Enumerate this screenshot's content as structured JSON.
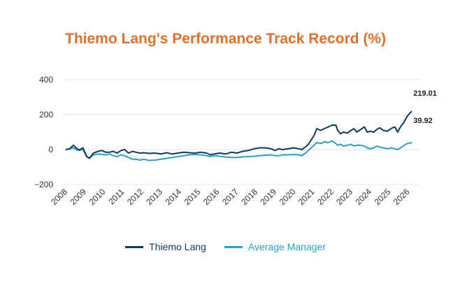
{
  "chart_data": {
    "type": "line",
    "title": "Thiemo Lang's Performance Track Record (%)",
    "xlabel": "",
    "ylabel": "",
    "ylim": [
      -200,
      400
    ],
    "xlim": [
      2007.75,
      2026.5
    ],
    "yticks": [
      400,
      200,
      0,
      -200
    ],
    "yticklabels": [
      "400",
      "200",
      "0",
      "−200"
    ],
    "xticks": [
      2008,
      2009,
      2010,
      2011,
      2012,
      2013,
      2014,
      2015,
      2016,
      2017,
      2018,
      2019,
      2020,
      2021,
      2022,
      2023,
      2024,
      2025,
      2026
    ],
    "xticklabels": [
      "2008",
      "2009",
      "2010",
      "2011",
      "2012",
      "2013",
      "2014",
      "2015",
      "2016",
      "2017",
      "2018",
      "2019",
      "2020",
      "2021",
      "2022",
      "2023",
      "2024",
      "2025",
      "2026"
    ],
    "grid": true,
    "legend_position": "bottom",
    "colors": {
      "title": "#e0702a",
      "series_1": "#0d3a5f",
      "series_2": "#2aa0c8"
    },
    "series": [
      {
        "name": "Thiemo Lang",
        "end_label": "219.01",
        "x": [
          2007.9,
          2008.1,
          2008.3,
          2008.45,
          2008.6,
          2008.8,
          2009.0,
          2009.15,
          2009.35,
          2009.6,
          2009.8,
          2010.0,
          2010.2,
          2010.4,
          2010.6,
          2010.8,
          2011.0,
          2011.2,
          2011.4,
          2011.6,
          2011.8,
          2012.0,
          2012.3,
          2012.6,
          2012.9,
          2013.2,
          2013.5,
          2013.8,
          2014.1,
          2014.4,
          2014.7,
          2015.0,
          2015.3,
          2015.5,
          2015.7,
          2016.0,
          2016.3,
          2016.6,
          2016.9,
          2017.2,
          2017.5,
          2017.8,
          2018.1,
          2018.4,
          2018.7,
          2018.9,
          2019.1,
          2019.3,
          2019.6,
          2019.9,
          2020.15,
          2020.3,
          2020.5,
          2020.65,
          2020.8,
          2020.95,
          2021.1,
          2021.3,
          2021.5,
          2021.7,
          2021.9,
          2022.1,
          2022.2,
          2022.35,
          2022.5,
          2022.7,
          2022.9,
          2023.05,
          2023.2,
          2023.4,
          2023.6,
          2023.75,
          2023.9,
          2024.1,
          2024.25,
          2024.4,
          2024.6,
          2024.8,
          2025.0,
          2025.2,
          2025.35,
          2025.5,
          2025.7,
          2025.85,
          2026.0,
          2026.1
        ],
        "values": [
          0,
          5,
          25,
          10,
          -2,
          10,
          -40,
          -50,
          -20,
          -10,
          -5,
          -15,
          -15,
          -10,
          -20,
          -5,
          0,
          -20,
          -10,
          -15,
          -20,
          -18,
          -22,
          -20,
          -25,
          -18,
          -25,
          -20,
          -15,
          -18,
          -20,
          -15,
          -20,
          -30,
          -25,
          -20,
          -25,
          -15,
          -20,
          -10,
          -5,
          5,
          10,
          10,
          5,
          -5,
          5,
          0,
          5,
          10,
          5,
          0,
          15,
          30,
          55,
          80,
          120,
          110,
          120,
          130,
          140,
          140,
          110,
          90,
          100,
          95,
          110,
          120,
          100,
          115,
          130,
          100,
          105,
          100,
          115,
          125,
          110,
          105,
          120,
          130,
          100,
          130,
          160,
          190,
          210,
          219.01
        ]
      },
      {
        "name": "Average Manager",
        "end_label": "39.92",
        "x": [
          2007.9,
          2008.1,
          2008.3,
          2008.45,
          2008.6,
          2008.8,
          2009.0,
          2009.15,
          2009.35,
          2009.6,
          2009.8,
          2010.0,
          2010.2,
          2010.4,
          2010.6,
          2010.8,
          2011.0,
          2011.2,
          2011.4,
          2011.6,
          2011.8,
          2012.0,
          2012.3,
          2012.6,
          2012.9,
          2013.2,
          2013.5,
          2013.8,
          2014.1,
          2014.4,
          2014.7,
          2015.0,
          2015.3,
          2015.5,
          2015.7,
          2016.0,
          2016.3,
          2016.6,
          2016.9,
          2017.2,
          2017.5,
          2017.8,
          2018.1,
          2018.4,
          2018.7,
          2018.9,
          2019.1,
          2019.3,
          2019.6,
          2019.9,
          2020.15,
          2020.3,
          2020.5,
          2020.65,
          2020.8,
          2020.95,
          2021.1,
          2021.3,
          2021.5,
          2021.7,
          2021.9,
          2022.1,
          2022.2,
          2022.35,
          2022.5,
          2022.7,
          2022.9,
          2023.05,
          2023.2,
          2023.4,
          2023.6,
          2023.75,
          2023.9,
          2024.1,
          2024.25,
          2024.4,
          2024.6,
          2024.8,
          2025.0,
          2025.2,
          2025.35,
          2025.5,
          2025.7,
          2025.85,
          2026.0,
          2026.1
        ],
        "values": [
          0,
          3,
          10,
          0,
          -5,
          0,
          -40,
          -48,
          -30,
          -25,
          -28,
          -30,
          -25,
          -35,
          -40,
          -30,
          -35,
          -45,
          -55,
          -55,
          -60,
          -55,
          -62,
          -60,
          -55,
          -50,
          -45,
          -40,
          -35,
          -30,
          -28,
          -30,
          -35,
          -40,
          -35,
          -38,
          -42,
          -45,
          -45,
          -42,
          -40,
          -38,
          -35,
          -32,
          -30,
          -35,
          -35,
          -30,
          -30,
          -28,
          -30,
          -35,
          -20,
          -5,
          10,
          25,
          40,
          35,
          45,
          40,
          50,
          35,
          25,
          30,
          20,
          25,
          30,
          20,
          25,
          25,
          20,
          10,
          5,
          10,
          20,
          15,
          10,
          5,
          10,
          5,
          0,
          10,
          25,
          35,
          38,
          39.92
        ]
      }
    ]
  }
}
